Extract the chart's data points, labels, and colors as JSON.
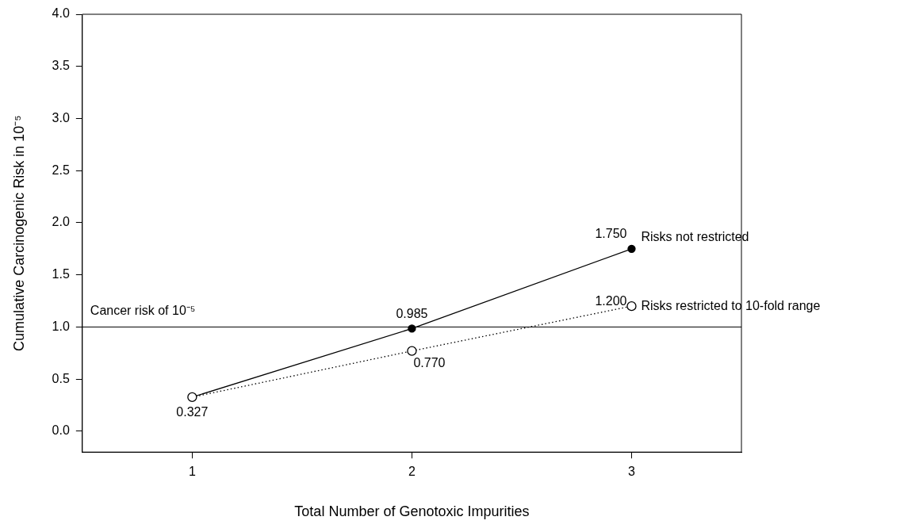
{
  "chart_data": {
    "type": "line",
    "xlabel": "Total Number of Genotoxic Impurities",
    "ylabel": "Cumulative Carcinogenic Risk in 10⁻⁵",
    "x": [
      1,
      2,
      3
    ],
    "series": [
      {
        "name": "Risks not restricted",
        "color": "#000000",
        "values": [
          0.327,
          0.985,
          1.75
        ],
        "value_labels": [
          "0.327",
          "0.985",
          "1.750"
        ],
        "line_style": "solid"
      },
      {
        "name": "Risks restricted to 10-fold range",
        "color": "#000000",
        "values": [
          0.327,
          0.77,
          1.2
        ],
        "value_labels": [
          null,
          "0.770",
          "1.200"
        ],
        "line_style": "dotted"
      }
    ],
    "xlim": [
      0.5,
      3.5
    ],
    "xticks": [
      1,
      2,
      3
    ],
    "ylim": [
      -0.2,
      4.0
    ],
    "yticks": [
      {
        "value": 0,
        "label": "0.0"
      },
      {
        "value": 0.5,
        "label": "0.5"
      },
      {
        "value": 1,
        "label": "1.0"
      },
      {
        "value": 1.5,
        "label": "1.5"
      },
      {
        "value": 2,
        "label": "2.0"
      },
      {
        "value": 2.5,
        "label": "2.5"
      },
      {
        "value": 3,
        "label": "3.0"
      },
      {
        "value": 3.5,
        "label": "3.5"
      },
      {
        "value": 4,
        "label": "4.0"
      }
    ],
    "ref_lines": [
      {
        "axis": "y",
        "value": 1,
        "label": "Cancer risk of 10⁻⁵",
        "color": "#000000"
      }
    ],
    "grid": false,
    "legend": false,
    "marker": "circle"
  }
}
